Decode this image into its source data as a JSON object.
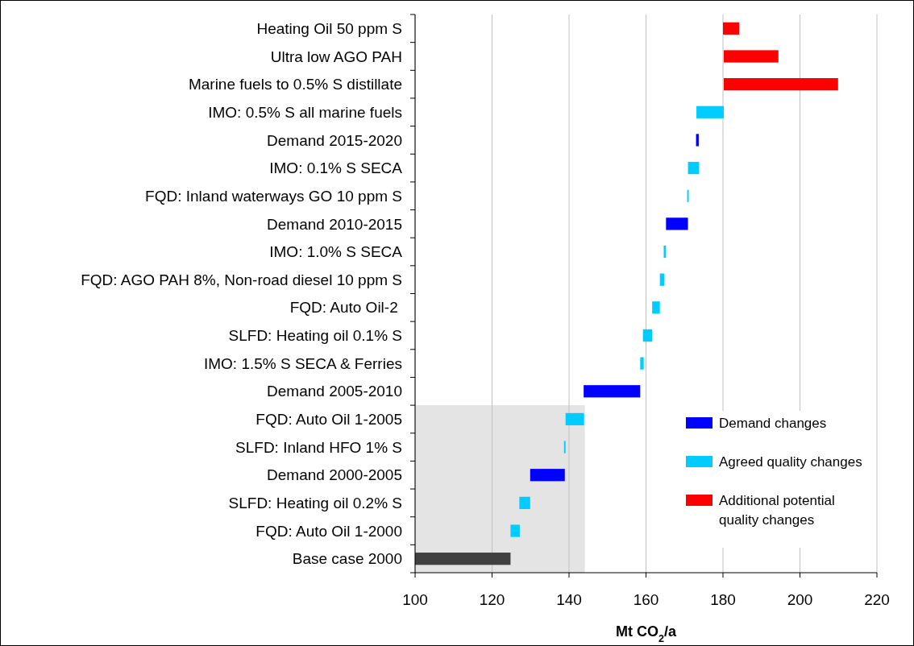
{
  "chart_data": {
    "type": "bar",
    "orientation": "horizontal",
    "categories": [
      "Heating Oil 50 ppm S",
      "Ultra low AGO PAH",
      "Marine fuels to 0.5% S distillate",
      "IMO: 0.5% S all marine fuels",
      "Demand 2015-2020",
      "IMO: 0.1% S SECA",
      "FQD: Inland waterways GO 10 ppm S",
      "Demand 2010-2015",
      "IMO: 1.0% S SECA",
      "FQD: AGO PAH 8%, Non-road diesel 10 ppm S",
      "FQD: Auto Oil-2 ",
      "SLFD: Heating oil 0.1% S",
      "IMO: 1.5% S SECA & Ferries",
      "Demand 2005-2010",
      "FQD: Auto Oil 1-2005",
      "SLFD: Inland HFO 1% S",
      "Demand 2000-2005",
      "SLFD: Heating oil 0.2% S",
      "FQD: Auto Oil 1-2000",
      "Base case 2000"
    ],
    "series": [
      {
        "color": "#404040",
        "base": [
          null,
          null,
          null,
          null,
          null,
          null,
          null,
          null,
          null,
          null,
          null,
          null,
          null,
          null,
          null,
          null,
          null,
          null,
          null,
          100
        ],
        "values": [
          null,
          null,
          null,
          null,
          null,
          null,
          null,
          null,
          null,
          null,
          null,
          null,
          null,
          null,
          null,
          null,
          null,
          null,
          null,
          24.8
        ]
      },
      {
        "name": "Demand changes",
        "color": "#0000ff",
        "base": [
          null,
          null,
          null,
          null,
          173.0,
          null,
          null,
          165.2,
          null,
          null,
          null,
          null,
          null,
          143.8,
          null,
          null,
          129.9,
          null,
          null,
          null
        ],
        "values": [
          null,
          null,
          null,
          null,
          0.7,
          null,
          null,
          5.7,
          null,
          null,
          null,
          null,
          null,
          14.7,
          null,
          null,
          9.0,
          null,
          null,
          null
        ]
      },
      {
        "name": "Agreed quality changes",
        "color": "#00ccff",
        "base": [
          null,
          null,
          null,
          173.1,
          null,
          170.9,
          170.7,
          null,
          164.6,
          163.6,
          161.6,
          159.2,
          158.5,
          null,
          139.1,
          138.7,
          null,
          127.1,
          124.8,
          null
        ],
        "values": [
          null,
          null,
          null,
          7.1,
          null,
          2.9,
          0.4,
          null,
          0.6,
          1.2,
          2.0,
          2.4,
          0.9,
          null,
          4.8,
          0.4,
          null,
          2.8,
          2.4,
          null
        ]
      },
      {
        "name": "Additional potential quality changes",
        "color": "#ff0000",
        "base": [
          180,
          180.2,
          180.2,
          null,
          null,
          null,
          null,
          null,
          null,
          null,
          null,
          null,
          null,
          null,
          null,
          null,
          null,
          null,
          null,
          null
        ],
        "values": [
          4.2,
          14.2,
          29.7,
          null,
          null,
          null,
          null,
          null,
          null,
          null,
          null,
          null,
          null,
          null,
          null,
          null,
          null,
          null,
          null,
          null
        ]
      }
    ],
    "xlim": [
      100,
      220
    ],
    "xticks": [
      100,
      120,
      140,
      160,
      180,
      200,
      220
    ],
    "xlabel": "Mt CO$_{2}$/a",
    "grid": "x",
    "legend": "bottom right",
    "bands": [
      {
        "axis": "x",
        "from": 100,
        "to": 144.1,
        "color": "#e4e4e4"
      }
    ]
  }
}
